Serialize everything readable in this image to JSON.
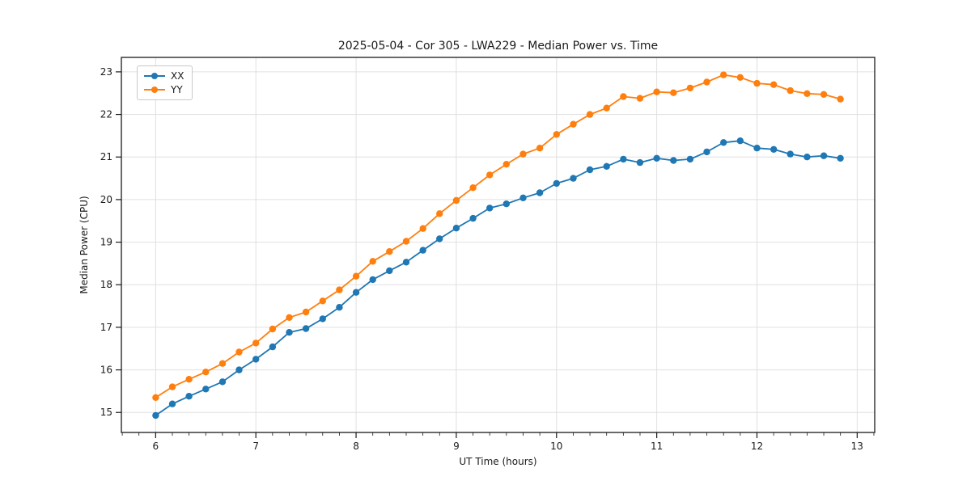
{
  "chart_data": {
    "type": "line",
    "title": "2025-05-04 - Cor 305 - LWA229 - Median Power vs. Time",
    "xlabel": "UT Time (hours)",
    "ylabel": "Median Power (CPU)",
    "xlim": [
      5.658,
      13.175
    ],
    "ylim": [
      14.53,
      23.34
    ],
    "xticks": [
      6,
      7,
      8,
      9,
      10,
      11,
      12,
      13
    ],
    "yticks": [
      15,
      16,
      17,
      18,
      19,
      20,
      21,
      22,
      23
    ],
    "x_minor_step_hours": 0.1667,
    "grid": true,
    "grid_color": "#e0e0e0",
    "axis_color": "#1a1a1a",
    "legend_position": "upper-left",
    "marker": "circle",
    "x": [
      6.0,
      6.167,
      6.333,
      6.5,
      6.667,
      6.833,
      7.0,
      7.167,
      7.333,
      7.5,
      7.667,
      7.833,
      8.0,
      8.167,
      8.333,
      8.5,
      8.667,
      8.833,
      9.0,
      9.167,
      9.333,
      9.5,
      9.667,
      9.833,
      10.0,
      10.167,
      10.333,
      10.5,
      10.667,
      10.833,
      11.0,
      11.167,
      11.333,
      11.5,
      11.667,
      11.833,
      12.0,
      12.167,
      12.333,
      12.5,
      12.667,
      12.833
    ],
    "series": [
      {
        "name": "XX",
        "color": "#1f77b4",
        "values": [
          14.93,
          15.2,
          15.38,
          15.55,
          15.72,
          16.0,
          16.25,
          16.54,
          16.88,
          16.97,
          17.2,
          17.47,
          17.82,
          18.12,
          18.33,
          18.53,
          18.81,
          19.08,
          19.33,
          19.56,
          19.8,
          19.9,
          20.04,
          20.16,
          20.38,
          20.5,
          20.7,
          20.78,
          20.95,
          20.87,
          20.97,
          20.92,
          20.95,
          21.12,
          21.34,
          21.38,
          21.21,
          21.18,
          21.07,
          21.0,
          21.03,
          20.97
        ]
      },
      {
        "name": "YY",
        "color": "#ff7f0e",
        "values": [
          15.35,
          15.6,
          15.78,
          15.95,
          16.15,
          16.42,
          16.63,
          16.96,
          17.23,
          17.36,
          17.62,
          17.88,
          18.2,
          18.55,
          18.78,
          19.02,
          19.32,
          19.67,
          19.98,
          20.28,
          20.58,
          20.83,
          21.07,
          21.21,
          21.53,
          21.77,
          22.0,
          22.15,
          22.42,
          22.38,
          22.53,
          22.51,
          22.62,
          22.76,
          22.93,
          22.87,
          22.73,
          22.7,
          22.56,
          22.49,
          22.47,
          22.36
        ]
      }
    ]
  }
}
